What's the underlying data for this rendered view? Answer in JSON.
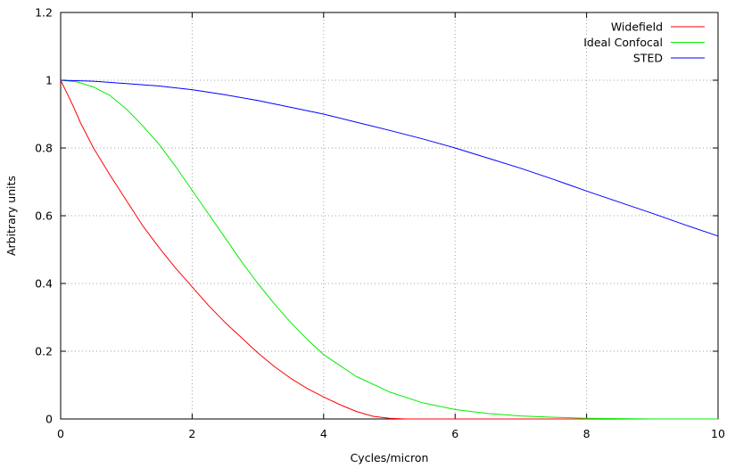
{
  "chart_data": {
    "type": "line",
    "title": "",
    "xlabel": "Cycles/micron",
    "ylabel": "Arbitrary units",
    "xlim": [
      0,
      10
    ],
    "ylim": [
      0,
      1.2
    ],
    "grid": true,
    "legend_position": "top-right",
    "x_ticks": [
      "0",
      "2",
      "4",
      "6",
      "8",
      "10"
    ],
    "y_ticks": [
      "0",
      "0.2",
      "0.4",
      "0.6",
      "0.8",
      "1",
      "1.2"
    ],
    "x_tick_values": [
      0,
      2,
      4,
      6,
      8,
      10
    ],
    "y_tick_values": [
      0,
      0.2,
      0.4,
      0.6,
      0.8,
      1,
      1.2
    ],
    "series": [
      {
        "name": "Widefield",
        "color": "#ff0000",
        "x": [
          0,
          0.1,
          0.2,
          0.3,
          0.5,
          0.75,
          1.0,
          1.25,
          1.5,
          1.75,
          2.0,
          2.25,
          2.5,
          2.75,
          3.0,
          3.25,
          3.5,
          3.75,
          4.0,
          4.25,
          4.5,
          4.75,
          5.0,
          5.25,
          5.5,
          6.0,
          7.0,
          8.0,
          9.0,
          10.0
        ],
        "values": [
          1.0,
          0.96,
          0.92,
          0.875,
          0.8,
          0.72,
          0.645,
          0.57,
          0.505,
          0.445,
          0.39,
          0.335,
          0.285,
          0.24,
          0.195,
          0.155,
          0.12,
          0.09,
          0.065,
          0.042,
          0.022,
          0.008,
          0.002,
          0.0,
          0.0,
          0.0,
          0.0,
          0.0,
          0.0,
          0.0
        ]
      },
      {
        "name": "Ideal Confocal",
        "color": "#00ee00",
        "x": [
          0,
          0.25,
          0.5,
          0.75,
          1.0,
          1.25,
          1.5,
          1.75,
          2.0,
          2.25,
          2.5,
          2.75,
          3.0,
          3.25,
          3.5,
          3.75,
          4.0,
          4.5,
          5.0,
          5.5,
          6.0,
          6.5,
          7.0,
          7.5,
          8.0,
          8.5,
          9.0,
          9.5,
          10.0
        ],
        "values": [
          1.0,
          0.995,
          0.98,
          0.955,
          0.915,
          0.865,
          0.81,
          0.745,
          0.675,
          0.605,
          0.535,
          0.465,
          0.4,
          0.34,
          0.285,
          0.235,
          0.19,
          0.125,
          0.08,
          0.048,
          0.028,
          0.016,
          0.009,
          0.005,
          0.002,
          0.001,
          0.0,
          0.0,
          0.0
        ]
      },
      {
        "name": "STED",
        "color": "#0000ff",
        "x": [
          0,
          0.5,
          1.0,
          1.5,
          2.0,
          2.5,
          3.0,
          3.5,
          4.0,
          4.5,
          5.0,
          5.5,
          6.0,
          6.5,
          7.0,
          7.5,
          8.0,
          8.5,
          9.0,
          9.5,
          10.0
        ],
        "values": [
          1.0,
          0.997,
          0.99,
          0.983,
          0.972,
          0.957,
          0.94,
          0.92,
          0.9,
          0.876,
          0.852,
          0.827,
          0.8,
          0.77,
          0.74,
          0.707,
          0.673,
          0.64,
          0.607,
          0.573,
          0.54
        ]
      }
    ]
  }
}
